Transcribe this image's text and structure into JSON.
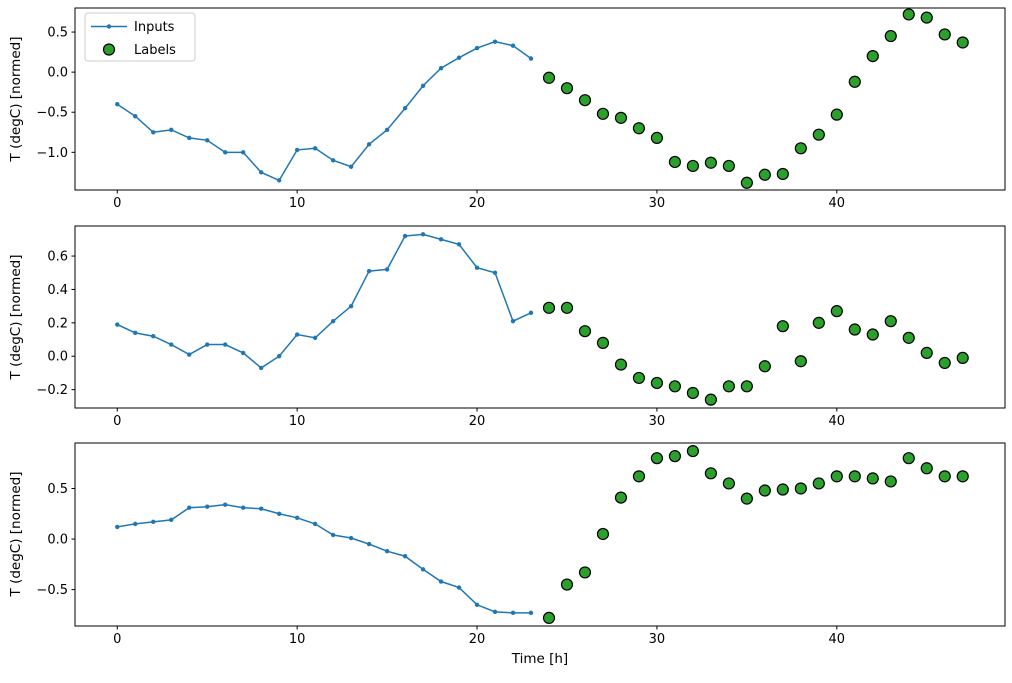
{
  "figure": {
    "xlabel": "Time [h]",
    "legend": {
      "inputs": "Inputs",
      "labels": "Labels"
    },
    "colors": {
      "inputs": "#1f77b4",
      "labels_fill": "#2ca02c",
      "labels_edge": "#000000"
    }
  },
  "chart_data": [
    {
      "type": "line",
      "title": "",
      "xlabel": "",
      "ylabel": "T (degC) [normed]",
      "xlim": [
        -2.35,
        49.35
      ],
      "ylim": [
        -1.47,
        0.8
      ],
      "xticks": [
        0,
        10,
        20,
        30,
        40
      ],
      "xtick_labels": [
        "0",
        "10",
        "20",
        "30",
        "40"
      ],
      "yticks": [
        0.5,
        0.0,
        -0.5,
        -1.0
      ],
      "ytick_labels": [
        "0.5",
        "0.0",
        "−0.5",
        "−1.0"
      ],
      "grid": false,
      "legend_position": "upper left",
      "series": [
        {
          "name": "Inputs",
          "type": "line",
          "marker": "dot",
          "color": "#1f77b4",
          "x": [
            0,
            1,
            2,
            3,
            4,
            5,
            6,
            7,
            8,
            9,
            10,
            11,
            12,
            13,
            14,
            15,
            16,
            17,
            18,
            19,
            20,
            21,
            22,
            23
          ],
          "values": [
            -0.4,
            -0.55,
            -0.75,
            -0.72,
            -0.82,
            -0.85,
            -1.0,
            -1.0,
            -1.25,
            -1.35,
            -0.97,
            -0.95,
            -1.1,
            -1.18,
            -0.9,
            -0.72,
            -0.45,
            -0.17,
            0.05,
            0.18,
            0.3,
            0.38,
            0.33,
            0.17
          ]
        },
        {
          "name": "Labels",
          "type": "scatter",
          "marker": "circle",
          "color": "#2ca02c",
          "x": [
            24,
            25,
            26,
            27,
            28,
            29,
            30,
            31,
            32,
            33,
            34,
            35,
            36,
            37,
            38,
            39,
            40,
            41,
            42,
            43,
            44,
            45,
            46,
            47
          ],
          "values": [
            -0.07,
            -0.2,
            -0.35,
            -0.52,
            -0.57,
            -0.7,
            -0.82,
            -1.12,
            -1.17,
            -1.13,
            -1.17,
            -1.38,
            -1.28,
            -1.27,
            -0.95,
            -0.78,
            -0.53,
            -0.12,
            0.2,
            0.45,
            0.72,
            0.68,
            0.47,
            0.37
          ]
        }
      ]
    },
    {
      "type": "line",
      "title": "",
      "xlabel": "",
      "ylabel": "T (degC) [normed]",
      "xlim": [
        -2.35,
        49.35
      ],
      "ylim": [
        -0.31,
        0.78
      ],
      "xticks": [
        0,
        10,
        20,
        30,
        40
      ],
      "xtick_labels": [
        "0",
        "10",
        "20",
        "30",
        "40"
      ],
      "yticks": [
        0.6,
        0.4,
        0.2,
        0.0,
        -0.2
      ],
      "ytick_labels": [
        "0.6",
        "0.4",
        "0.2",
        "0.0",
        "−0.2"
      ],
      "grid": false,
      "series": [
        {
          "name": "Inputs",
          "type": "line",
          "marker": "dot",
          "color": "#1f77b4",
          "x": [
            0,
            1,
            2,
            3,
            4,
            5,
            6,
            7,
            8,
            9,
            10,
            11,
            12,
            13,
            14,
            15,
            16,
            17,
            18,
            19,
            20,
            21,
            22,
            23
          ],
          "values": [
            0.19,
            0.14,
            0.12,
            0.07,
            0.01,
            0.07,
            0.07,
            0.02,
            -0.07,
            0.0,
            0.13,
            0.11,
            0.21,
            0.3,
            0.51,
            0.52,
            0.72,
            0.73,
            0.7,
            0.67,
            0.53,
            0.5,
            0.21,
            0.26
          ]
        },
        {
          "name": "Labels",
          "type": "scatter",
          "marker": "circle",
          "color": "#2ca02c",
          "x": [
            24,
            25,
            26,
            27,
            28,
            29,
            30,
            31,
            32,
            33,
            34,
            35,
            36,
            37,
            38,
            39,
            40,
            41,
            42,
            43,
            44,
            45,
            46,
            47
          ],
          "values": [
            0.29,
            0.29,
            0.15,
            0.08,
            -0.05,
            -0.13,
            -0.16,
            -0.18,
            -0.22,
            -0.26,
            -0.18,
            -0.18,
            -0.06,
            0.18,
            -0.03,
            0.2,
            0.27,
            0.16,
            0.13,
            0.21,
            0.11,
            0.02,
            -0.04,
            -0.01
          ]
        }
      ]
    },
    {
      "type": "line",
      "title": "",
      "xlabel": "Time [h]",
      "ylabel": "T (degC) [normed]",
      "xlim": [
        -2.35,
        49.35
      ],
      "ylim": [
        -0.86,
        0.95
      ],
      "xticks": [
        0,
        10,
        20,
        30,
        40
      ],
      "xtick_labels": [
        "0",
        "10",
        "20",
        "30",
        "40"
      ],
      "yticks": [
        0.5,
        0.0,
        -0.5
      ],
      "ytick_labels": [
        "0.5",
        "0.0",
        "−0.5"
      ],
      "grid": false,
      "series": [
        {
          "name": "Inputs",
          "type": "line",
          "marker": "dot",
          "color": "#1f77b4",
          "x": [
            0,
            1,
            2,
            3,
            4,
            5,
            6,
            7,
            8,
            9,
            10,
            11,
            12,
            13,
            14,
            15,
            16,
            17,
            18,
            19,
            20,
            21,
            22,
            23
          ],
          "values": [
            0.12,
            0.15,
            0.17,
            0.19,
            0.31,
            0.32,
            0.34,
            0.31,
            0.3,
            0.25,
            0.21,
            0.15,
            0.04,
            0.01,
            -0.05,
            -0.12,
            -0.17,
            -0.3,
            -0.42,
            -0.48,
            -0.65,
            -0.72,
            -0.73,
            -0.73
          ]
        },
        {
          "name": "Labels",
          "type": "scatter",
          "marker": "circle",
          "color": "#2ca02c",
          "x": [
            24,
            25,
            26,
            27,
            28,
            29,
            30,
            31,
            32,
            33,
            34,
            35,
            36,
            37,
            38,
            39,
            40,
            41,
            42,
            43,
            44,
            45,
            46,
            47
          ],
          "values": [
            -0.78,
            -0.45,
            -0.33,
            0.05,
            0.41,
            0.62,
            0.8,
            0.82,
            0.87,
            0.65,
            0.55,
            0.4,
            0.48,
            0.49,
            0.5,
            0.55,
            0.62,
            0.62,
            0.6,
            0.57,
            0.8,
            0.7,
            0.62,
            0.62
          ]
        }
      ]
    }
  ]
}
